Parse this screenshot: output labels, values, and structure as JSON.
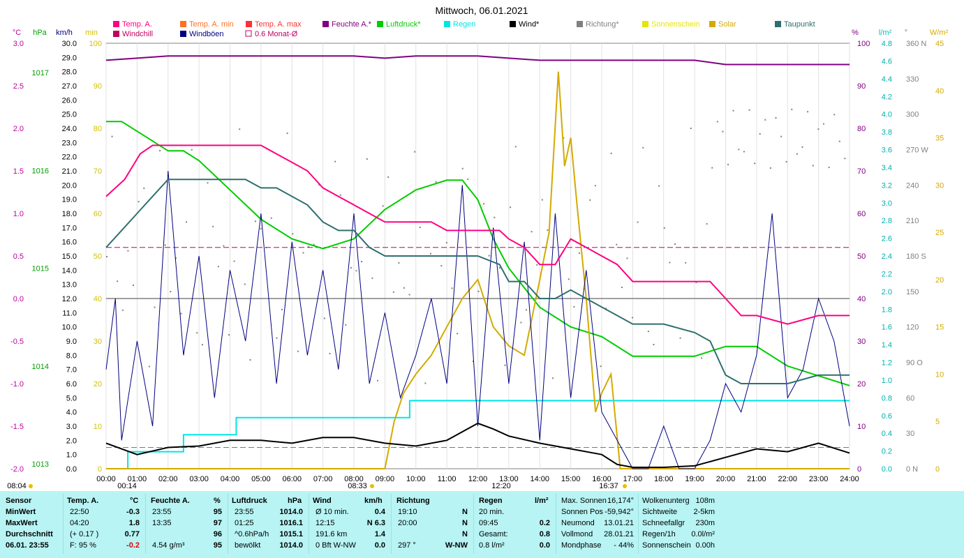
{
  "title": "Mittwoch, 06.01.2021",
  "legend": [
    {
      "label": "Temp. A.",
      "color": "#ff0080"
    },
    {
      "label": "Windchill",
      "color": "#c00060"
    },
    {
      "label": "Temp. A. min",
      "color": "#ff7020"
    },
    {
      "label": "Windböen",
      "color": "#000080"
    },
    {
      "label": "Temp. A. max",
      "color": "#ff3030"
    },
    {
      "label": "0.6 Monat-Ø",
      "color": "#c00060"
    },
    {
      "label": "Feuchte A.*",
      "color": "#800080"
    },
    {
      "label": "Luftdruck*",
      "color": "#00cc00"
    },
    {
      "label": "Regen",
      "color": "#00e5e5"
    },
    {
      "label": "Wind*",
      "color": "#000000"
    },
    {
      "label": "Richtung*",
      "color": "#808080"
    },
    {
      "label": "Sonnenschein",
      "color": "#e6e600"
    },
    {
      "label": "Solar",
      "color": "#d4aa00"
    },
    {
      "label": "Taupunkt",
      "color": "#2f6f6f"
    }
  ],
  "axis_units": {
    "temp": "°C",
    "pressure": "hPa",
    "wind": "km/h",
    "sun": "min",
    "humidity": "%",
    "rain": "l/m²",
    "dir": "°",
    "solar": "W/m²"
  },
  "axis_ticks": {
    "temp": [
      "3.0",
      "2.5",
      "2.0",
      "1.5",
      "1.0",
      "0.5",
      "0.0",
      "-0.5",
      "-1.0",
      "-1.5",
      "-2.0"
    ],
    "pressure": [
      "1017",
      "1016",
      "1015",
      "1014",
      "1013"
    ],
    "wind": [
      "30.0",
      "29.0",
      "28.0",
      "27.0",
      "26.0",
      "25.0",
      "24.0",
      "23.0",
      "22.0",
      "21.0",
      "20.0",
      "19.0",
      "18.0",
      "17.0",
      "16.0",
      "15.0",
      "14.0",
      "13.0",
      "12.0",
      "11.0",
      "10.0",
      "9.0",
      "8.0",
      "7.0",
      "6.0",
      "5.0",
      "4.0",
      "3.0",
      "2.0",
      "1.0",
      "0.0"
    ],
    "sun": [
      "100",
      "90",
      "80",
      "70",
      "60",
      "50",
      "40",
      "30",
      "20",
      "10",
      "0"
    ],
    "humidity": [
      "100",
      "90",
      "80",
      "70",
      "60",
      "50",
      "40",
      "30",
      "20",
      "10",
      "0"
    ],
    "rain": [
      "4.8",
      "4.6",
      "4.4",
      "4.2",
      "4.0",
      "3.8",
      "3.6",
      "3.4",
      "3.2",
      "3.0",
      "2.8",
      "2.6",
      "2.4",
      "2.2",
      "2.0",
      "1.8",
      "1.6",
      "1.4",
      "1.2",
      "1.0",
      "0.8",
      "0.6",
      "0.4",
      "0.2",
      "0.0"
    ],
    "dir": [
      "360 N",
      "330",
      "300",
      "270 W",
      "240",
      "210",
      "180 S",
      "150",
      "120",
      "90 O",
      "60",
      "30",
      "0 N"
    ],
    "solar": [
      "45",
      "40",
      "35",
      "30",
      "25",
      "20",
      "15",
      "10",
      "5",
      "0"
    ],
    "time": [
      "00:00",
      "01:00",
      "02:00",
      "03:00",
      "04:00",
      "05:00",
      "06:00",
      "07:00",
      "08:00",
      "09:00",
      "10:00",
      "11:00",
      "12:00",
      "13:00",
      "14:00",
      "15:00",
      "16:00",
      "17:00",
      "18:00",
      "19:00",
      "20:00",
      "21:00",
      "22:00",
      "23:00",
      "24:00"
    ]
  },
  "time_markers": {
    "sunrise": "08:04",
    "t1": "00:14",
    "t2": "08:33",
    "t3": "12:20",
    "t4": "16:37"
  },
  "chart_data": {
    "type": "line",
    "title": "Mittwoch, 06.01.2021",
    "x_range": [
      0,
      24
    ],
    "series": [
      {
        "name": "Temp. A.",
        "color": "#ff0080",
        "axis": "temp [-2,3]",
        "x": [
          0,
          0.6,
          1.1,
          1.5,
          2.0,
          2.5,
          3.5,
          4.5,
          5.0,
          5.5,
          6.0,
          6.5,
          7.0,
          7.5,
          8.0,
          8.5,
          9.0,
          10.0,
          10.5,
          11.0,
          12.0,
          12.7,
          13.0,
          13.5,
          14.0,
          14.5,
          15.0,
          15.5,
          16.0,
          16.5,
          17.0,
          18.0,
          19.0,
          19.5,
          20.0,
          20.5,
          21.0,
          22.0,
          23.0,
          24.0
        ],
        "y": [
          1.2,
          1.4,
          1.7,
          1.8,
          1.8,
          1.8,
          1.8,
          1.8,
          1.8,
          1.7,
          1.6,
          1.5,
          1.3,
          1.2,
          1.1,
          1.0,
          0.9,
          0.9,
          0.9,
          0.8,
          0.8,
          0.8,
          0.7,
          0.6,
          0.4,
          0.4,
          0.7,
          0.6,
          0.5,
          0.4,
          0.2,
          0.2,
          0.2,
          0.2,
          0.0,
          -0.2,
          -0.2,
          -0.3,
          -0.2,
          -0.2
        ]
      },
      {
        "name": "Taupunkt",
        "color": "#2f6f6f",
        "axis": "temp [-2,3]",
        "x": [
          0,
          0.5,
          1.0,
          1.5,
          2.0,
          2.5,
          3.5,
          4.5,
          5.0,
          5.5,
          6.0,
          6.5,
          7.0,
          7.5,
          8.0,
          8.5,
          9.0,
          10.0,
          10.5,
          11.0,
          12.0,
          12.7,
          13.0,
          13.5,
          14.0,
          14.5,
          15.0,
          15.5,
          16.0,
          16.5,
          17.0,
          18.0,
          19.0,
          19.5,
          20.0,
          20.5,
          21.0,
          22.0,
          23.0,
          24.0
        ],
        "y": [
          0.6,
          0.8,
          1.0,
          1.2,
          1.4,
          1.4,
          1.4,
          1.4,
          1.3,
          1.3,
          1.2,
          1.1,
          0.9,
          0.8,
          0.8,
          0.6,
          0.5,
          0.5,
          0.5,
          0.5,
          0.5,
          0.4,
          0.2,
          0.2,
          0.0,
          0.0,
          0.1,
          0.0,
          -0.1,
          -0.2,
          -0.3,
          -0.3,
          -0.4,
          -0.5,
          -0.9,
          -1.0,
          -1.0,
          -1.0,
          -0.9,
          -0.9
        ]
      },
      {
        "name": "Feuchte A.*",
        "color": "#800080",
        "axis": "humidity [0,100]",
        "x": [
          0,
          1,
          2,
          3,
          4,
          5,
          6,
          7,
          8,
          9,
          10,
          11,
          12,
          13,
          14,
          15,
          16,
          17,
          18,
          19,
          20,
          21,
          22,
          23,
          24
        ],
        "y": [
          96,
          96.5,
          97,
          97,
          97,
          97,
          97,
          97,
          97,
          96.5,
          97,
          97,
          97,
          96.5,
          96,
          96,
          96,
          96,
          96,
          96,
          95,
          95,
          95,
          95,
          95
        ]
      },
      {
        "name": "Luftdruck*",
        "color": "#00cc00",
        "axis": "pressure [1013,1017]",
        "x": [
          0,
          0.5,
          1.0,
          1.5,
          2.0,
          2.5,
          3.0,
          4.0,
          5.0,
          6.0,
          7.0,
          8.0,
          9.0,
          10.0,
          11.0,
          11.5,
          12.0,
          12.5,
          13.0,
          14.0,
          15.0,
          16.0,
          17.0,
          18.0,
          19.0,
          20.0,
          21.0,
          22.0,
          23.0,
          24.0
        ],
        "y": [
          1016.5,
          1016.5,
          1016.4,
          1016.3,
          1016.2,
          1016.2,
          1016.1,
          1015.8,
          1015.5,
          1015.3,
          1015.2,
          1015.3,
          1015.6,
          1015.8,
          1015.9,
          1015.9,
          1015.7,
          1015.3,
          1015.0,
          1014.6,
          1014.4,
          1014.3,
          1014.1,
          1014.1,
          1014.1,
          1014.2,
          1014.2,
          1014.0,
          1013.9,
          1013.8
        ]
      },
      {
        "name": "Regen",
        "color": "#00e5e5",
        "axis": "rain [0,5]",
        "x": [
          0,
          0.7,
          0.7,
          2.5,
          2.5,
          4.2,
          4.2,
          9.8,
          9.8,
          24
        ],
        "y": [
          0,
          0,
          0.2,
          0.2,
          0.4,
          0.4,
          0.6,
          0.6,
          0.8,
          0.8
        ]
      },
      {
        "name": "Wind*",
        "color": "#000000",
        "axis": "wind [0,30]",
        "x": [
          0,
          1,
          2,
          3,
          4,
          5,
          6,
          7,
          8,
          9,
          10,
          11,
          12,
          12.5,
          13,
          14,
          15,
          16,
          16.5,
          17,
          18,
          19,
          20,
          21,
          22,
          23,
          24
        ],
        "y": [
          1.8,
          1.0,
          1.5,
          1.6,
          2.0,
          2.0,
          1.8,
          2.2,
          2.2,
          1.8,
          1.6,
          2.0,
          3.2,
          2.8,
          2.3,
          1.8,
          1.4,
          1.0,
          0.3,
          0.1,
          0.1,
          0.2,
          0.8,
          1.4,
          1.2,
          1.8,
          1.1
        ]
      },
      {
        "name": "Windböen",
        "color": "#000080",
        "axis": "wind [0,30]",
        "x": [
          0,
          0.3,
          0.5,
          1.0,
          1.5,
          2.0,
          2.5,
          3.0,
          3.5,
          4.0,
          4.5,
          5.0,
          5.5,
          6.0,
          6.5,
          7.0,
          7.5,
          8.0,
          8.5,
          9.0,
          9.5,
          10.0,
          10.5,
          11.0,
          11.5,
          12.0,
          12.5,
          13.0,
          13.5,
          14.0,
          14.5,
          15.0,
          15.5,
          16.0,
          16.5,
          17.0,
          17.5,
          18.0,
          18.5,
          19.0,
          19.5,
          20.0,
          20.5,
          21.0,
          21.5,
          22.0,
          22.5,
          23.0,
          23.5,
          24.0
        ],
        "y": [
          7,
          12,
          2,
          9,
          3,
          21,
          8,
          15,
          5,
          14,
          9,
          18,
          6,
          16,
          8,
          14,
          7,
          18,
          6,
          11,
          5,
          8,
          12,
          6,
          20,
          3,
          17,
          6,
          16,
          2,
          18,
          5,
          14,
          4,
          2,
          0,
          0,
          3,
          0,
          0,
          2,
          6,
          4,
          8,
          18,
          5,
          7,
          12,
          9,
          3
        ]
      },
      {
        "name": "Solar",
        "color": "#d4aa00",
        "axis": "solar [0,45]",
        "x": [
          0,
          9.0,
          9.3,
          9.6,
          10.0,
          10.5,
          11.0,
          11.5,
          12.0,
          12.5,
          13.0,
          13.5,
          14.0,
          14.3,
          14.6,
          14.8,
          15.0,
          15.2,
          15.5,
          15.8,
          16.0,
          16.3,
          16.6,
          24
        ],
        "y": [
          0,
          0,
          5,
          8,
          10,
          12,
          15,
          18,
          20,
          15,
          13,
          12,
          20,
          25,
          42,
          32,
          35,
          28,
          18,
          6,
          8,
          10,
          0,
          0
        ]
      },
      {
        "name": "0.6 Monat-Ø",
        "color": "#c00060",
        "axis": "temp [-2,3]",
        "x": [
          0,
          24
        ],
        "y": [
          0.6,
          0.6
        ]
      }
    ]
  },
  "stats": {
    "header": {
      "sensor": "Sensor",
      "temp": "Temp. A.",
      "temp_unit": "°C",
      "hum": "Feuchte A.",
      "hum_unit": "%",
      "press": "Luftdruck",
      "press_unit": "hPa",
      "wind": "Wind",
      "wind_unit": "km/h",
      "dir": "Richtung",
      "rain": "Regen",
      "rain_unit": "l/m²"
    },
    "rows": [
      {
        "label": "MinWert",
        "temp_t": "22:50",
        "temp_v": "-0.3",
        "hum_t": "23:55",
        "hum_v": "95",
        "press_t": "23:55",
        "press_v": "1014.0",
        "wind_t": "Ø 10 min.",
        "wind_v": "0.4",
        "dir_t": "19:10",
        "dir_v": "N",
        "rain_t": "20 min.",
        "rain_v": ""
      },
      {
        "label": "MaxWert",
        "temp_t": "04:20",
        "temp_v": "1.8",
        "hum_t": "13:35",
        "hum_v": "97",
        "press_t": "01:25",
        "press_v": "1016.1",
        "wind_t": "12:15",
        "wind_v": "N 6.3",
        "dir_t": "20:00",
        "dir_v": "N",
        "rain_t": "09:45",
        "rain_v": "0.2"
      },
      {
        "label": "Durchschnitt",
        "temp_t": "(+ 0.17 )",
        "temp_v": "0.77",
        "hum_t": "",
        "hum_v": "96",
        "press_t": "^0.6hPa/h",
        "press_v": "1015.1",
        "wind_t": "191.6 km",
        "wind_v": "1.4",
        "dir_t": "",
        "dir_v": "N",
        "rain_t": "Gesamt:",
        "rain_v": "0.8"
      },
      {
        "label": "06.01. 23:55",
        "temp_t": "F: 95 %",
        "temp_v": "-0.2",
        "hum_t": "4.54 g/m³",
        "hum_v": "95",
        "press_t": "bewölkt",
        "press_v": "1014.0",
        "wind_t": "0 Bft W-NW",
        "wind_v": "0.0",
        "dir_t": "297 °",
        "dir_v": "W-NW",
        "rain_t": "0.8 l/m²",
        "rain_v": "0.0"
      }
    ],
    "astro": [
      {
        "k": "Max. Sonnen",
        "v": "16,174°"
      },
      {
        "k": "Sonnen Pos",
        "v": "-59,942°"
      },
      {
        "k": "Neumond",
        "v": "13.01.21"
      },
      {
        "k": "Vollmond",
        "v": "28.01.21"
      },
      {
        "k": "Mondphase",
        "v": "- 44%"
      }
    ],
    "weather": [
      {
        "k": "Wolkenunterg",
        "v": "108m"
      },
      {
        "k": "Sichtweite",
        "v": "2-5km"
      },
      {
        "k": "Schneefallgr",
        "v": "230m"
      },
      {
        "k": "Regen/1h",
        "v": "0.0l/m²"
      },
      {
        "k": "Sonnenschein",
        "v": "0.00h"
      }
    ]
  }
}
